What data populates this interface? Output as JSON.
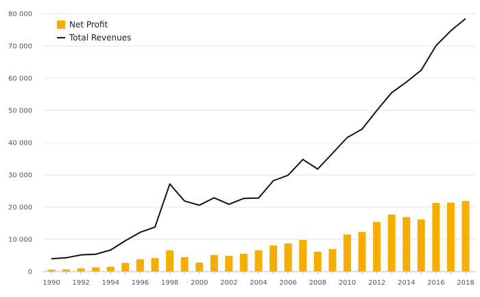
{
  "chart_data": {
    "type": "bar",
    "title": "",
    "xlabel": "",
    "ylabel": "",
    "ylim": [
      0,
      80000
    ],
    "yticks": [
      0,
      10000,
      20000,
      30000,
      40000,
      50000,
      60000,
      70000,
      80000
    ],
    "ytick_labels": [
      "0",
      "10 000",
      "20 000",
      "30 000",
      "40 000",
      "50 000",
      "60 000",
      "70 000",
      "80 000"
    ],
    "categories": [
      1990,
      1991,
      1992,
      1993,
      1994,
      1995,
      1996,
      1997,
      1998,
      1999,
      2000,
      2001,
      2002,
      2003,
      2004,
      2005,
      2006,
      2007,
      2008,
      2009,
      2010,
      2011,
      2012,
      2013,
      2014,
      2015,
      2016,
      2017,
      2018
    ],
    "xtick_labels": [
      "1990",
      "1992",
      "1994",
      "1996",
      "1998",
      "2000",
      "2002",
      "2004",
      "2006",
      "2008",
      "2010",
      "2012",
      "2014",
      "2016",
      "2018"
    ],
    "grid": true,
    "legend_position": "top-left",
    "series": [
      {
        "name": "Net Profit",
        "type": "bar",
        "color": "#F7AC00",
        "values": [
          600,
          700,
          1000,
          1300,
          1500,
          2700,
          3800,
          4200,
          6600,
          4500,
          2800,
          5100,
          4900,
          5500,
          6600,
          8100,
          8700,
          9800,
          6200,
          7000,
          11500,
          12300,
          15400,
          17700,
          16900,
          16200,
          21300,
          21400,
          21900
        ]
      },
      {
        "name": "Total Revenues",
        "type": "line",
        "color": "#111111",
        "values": [
          4000,
          4300,
          5200,
          5400,
          6700,
          9600,
          12200,
          13800,
          27200,
          21900,
          20600,
          22900,
          20900,
          22700,
          22800,
          28200,
          29900,
          34800,
          31800,
          36700,
          41600,
          44200,
          50000,
          55500,
          58800,
          62500,
          70100,
          74700,
          78500
        ]
      }
    ]
  }
}
